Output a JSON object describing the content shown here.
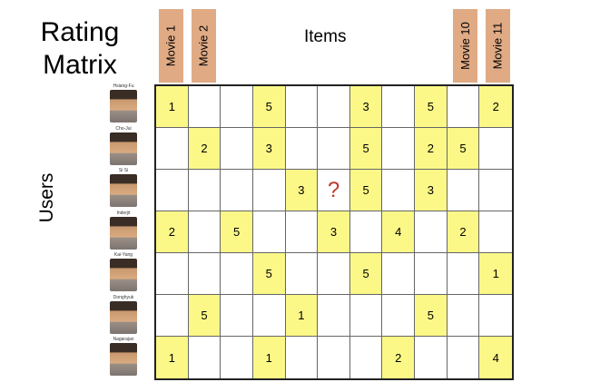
{
  "title": "Rating\nMatrix",
  "items_label": "Items",
  "users_label": "Users",
  "movies": [
    {
      "label": "Movie 1",
      "column": 1
    },
    {
      "label": "Movie 2",
      "column": 2
    },
    {
      "label": "Movie 10",
      "column": 10
    },
    {
      "label": "Movie 11",
      "column": 11
    }
  ],
  "users": [
    {
      "name": "Hsiang-Fu"
    },
    {
      "name": "Cho-Jui"
    },
    {
      "name": "Si Si"
    },
    {
      "name": "Inderjit"
    },
    {
      "name": "Kai-Yang"
    },
    {
      "name": "Donghyuk"
    },
    {
      "name": "Nagarajan"
    }
  ],
  "ratings": [
    [
      "1",
      "",
      "",
      "5",
      "",
      "",
      "3",
      "",
      "5",
      "",
      "2"
    ],
    [
      "",
      "2",
      "",
      "3",
      "",
      "",
      "5",
      "",
      "2",
      "5",
      ""
    ],
    [
      "",
      "",
      "",
      "",
      "3",
      "?",
      "5",
      "",
      "3",
      "",
      ""
    ],
    [
      "2",
      "",
      "5",
      "",
      "",
      "3",
      "",
      "4",
      "",
      "2",
      ""
    ],
    [
      "",
      "",
      "",
      "5",
      "",
      "",
      "5",
      "",
      "",
      "",
      "1"
    ],
    [
      "",
      "5",
      "",
      "",
      "1",
      "",
      "",
      "",
      "5",
      "",
      ""
    ],
    [
      "1",
      "",
      "",
      "1",
      "",
      "",
      "",
      "2",
      "",
      "",
      "4"
    ]
  ],
  "colors": {
    "filled": "#fbf887",
    "movie_tag": "#e0aa84",
    "unknown": "#c0392b"
  }
}
